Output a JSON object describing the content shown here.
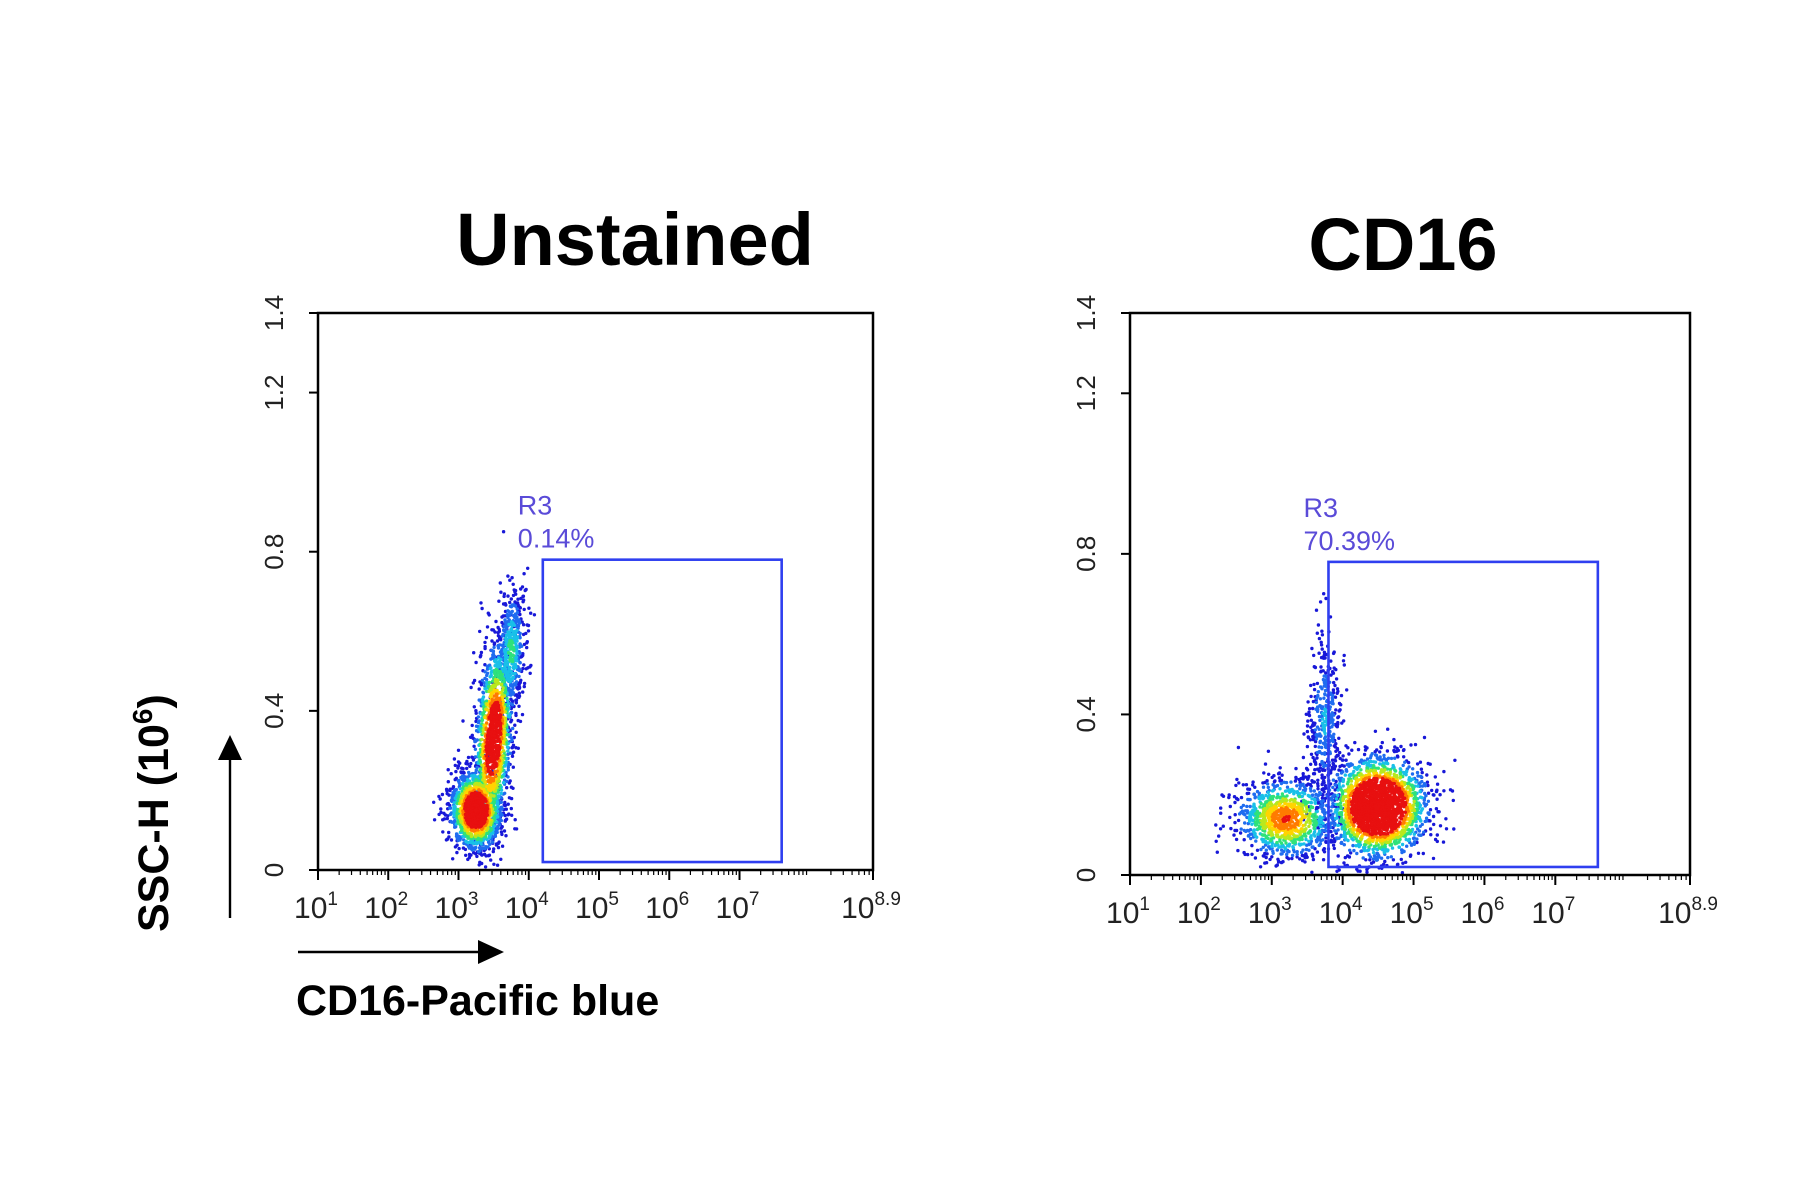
{
  "chart_data": [
    {
      "type": "scatter",
      "title": "Unstained",
      "x_scale": "log10",
      "xlim": [
        10,
        794328234.7
      ],
      "ylim": [
        0,
        1.4
      ],
      "x_ticks": [
        {
          "base": "10",
          "exp": "1"
        },
        {
          "base": "10",
          "exp": "2"
        },
        {
          "base": "10",
          "exp": "3"
        },
        {
          "base": "10",
          "exp": "4"
        },
        {
          "base": "10",
          "exp": "5"
        },
        {
          "base": "10",
          "exp": "6"
        },
        {
          "base": "10",
          "exp": "7"
        },
        {
          "base": "10",
          "exp": "8.9"
        }
      ],
      "y_ticks": [
        "0",
        "0.4",
        "0.8",
        "1.2",
        "1.4"
      ],
      "y_tick_values": [
        0,
        0.4,
        0.8,
        1.2,
        1.4
      ],
      "gate": {
        "name": "R3",
        "percent": "0.14%",
        "x_range": [
          15849,
          39810717
        ],
        "y_range": [
          0.02,
          0.78
        ]
      },
      "populations": [
        {
          "x": 1780,
          "y": 0.15,
          "x_spread_decades": 0.18,
          "y_spread": 0.05,
          "weight": 0.45,
          "tilt": 0.0
        },
        {
          "x": 3160,
          "y": 0.33,
          "x_spread_decades": 0.13,
          "y_spread": 0.12,
          "weight": 0.4,
          "tilt": 0.35
        },
        {
          "x": 5620,
          "y": 0.55,
          "x_spread_decades": 0.1,
          "y_spread": 0.08,
          "weight": 0.15,
          "tilt": 0.2
        }
      ]
    },
    {
      "type": "scatter",
      "title": "CD16",
      "x_scale": "log10",
      "xlim": [
        10,
        794328234.7
      ],
      "ylim": [
        0,
        1.4
      ],
      "x_ticks": [
        {
          "base": "10",
          "exp": "1"
        },
        {
          "base": "10",
          "exp": "2"
        },
        {
          "base": "10",
          "exp": "3"
        },
        {
          "base": "10",
          "exp": "4"
        },
        {
          "base": "10",
          "exp": "5"
        },
        {
          "base": "10",
          "exp": "6"
        },
        {
          "base": "10",
          "exp": "7"
        },
        {
          "base": "10",
          "exp": "8.9"
        }
      ],
      "y_ticks": [
        "0",
        "0.4",
        "0.8",
        "1.2",
        "1.4"
      ],
      "y_tick_values": [
        0,
        0.4,
        0.8,
        1.2,
        1.4
      ],
      "gate": {
        "name": "R3",
        "percent": "70.39%",
        "x_range": [
          6310,
          39810717
        ],
        "y_range": [
          0.02,
          0.78
        ]
      },
      "populations": [
        {
          "x": 1580,
          "y": 0.14,
          "x_spread_decades": 0.35,
          "y_spread": 0.05,
          "weight": 0.3,
          "tilt": 0.0
        },
        {
          "x": 31600,
          "y": 0.17,
          "x_spread_decades": 0.33,
          "y_spread": 0.06,
          "weight": 0.6,
          "tilt": 0.0
        },
        {
          "x": 5620,
          "y": 0.38,
          "x_spread_decades": 0.12,
          "y_spread": 0.1,
          "weight": 0.1,
          "tilt": 0.0
        }
      ]
    }
  ],
  "axes": {
    "ylabel_main": "SSC-H (10",
    "ylabel_exp": "6",
    "ylabel_close": ")",
    "xlabel": "CD16-Pacific blue"
  },
  "colors": {
    "gate": "#2f3ff0",
    "gate_label": "#5a4bd8",
    "frame": "#000000",
    "density_scale": [
      "#1818d8",
      "#1f6cf0",
      "#19c0e8",
      "#2ee27a",
      "#b8e81e",
      "#ffd400",
      "#ff7b00",
      "#e81010"
    ]
  }
}
